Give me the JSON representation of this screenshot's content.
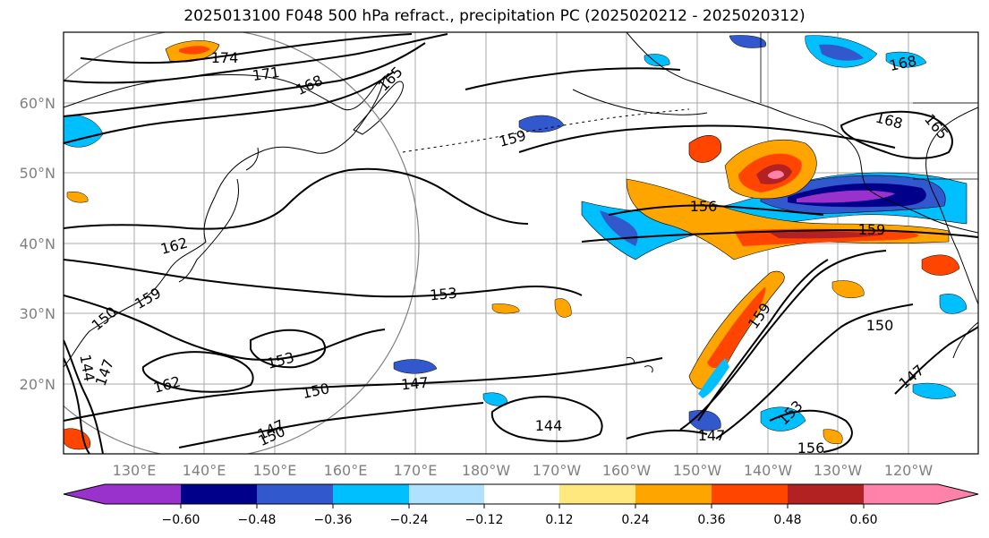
{
  "title": "2025013100 F048 500 hPa refract., precipitation PC (2025020212 - 2025020312)",
  "map": {
    "lat_labels": [
      "60°N",
      "50°N",
      "40°N",
      "30°N",
      "20°N"
    ],
    "lon_labels": [
      "130°E",
      "140°E",
      "150°E",
      "160°E",
      "170°E",
      "180°W",
      "170°W",
      "160°W",
      "150°W",
      "140°W",
      "130°W",
      "120°W"
    ],
    "contour_labels": [
      "174",
      "171",
      "168",
      "165",
      "159",
      "168",
      "165",
      "168",
      "162",
      "153",
      "159",
      "156",
      "159",
      "153",
      "162",
      "150",
      "147",
      "144",
      "147",
      "150",
      "150",
      "147",
      "153",
      "156",
      "147",
      "144",
      "147",
      "150",
      "159"
    ]
  },
  "colorbar": {
    "ticks": [
      "−0.60",
      "−0.48",
      "−0.36",
      "−0.24",
      "−0.12",
      "0.12",
      "0.24",
      "0.36",
      "0.48",
      "0.60"
    ],
    "colors": [
      "#9932CC",
      "#00008B",
      "#3158CC",
      "#00BFFF",
      "#B0E2FF",
      "#FFFFFF",
      "#FFE97F",
      "#FFA500",
      "#FF4500",
      "#B22222",
      "#FF82AB"
    ]
  },
  "colors": {
    "grid": "#A9A9A9",
    "coast": "#000000",
    "contour": "#000000",
    "label": "#808080"
  }
}
